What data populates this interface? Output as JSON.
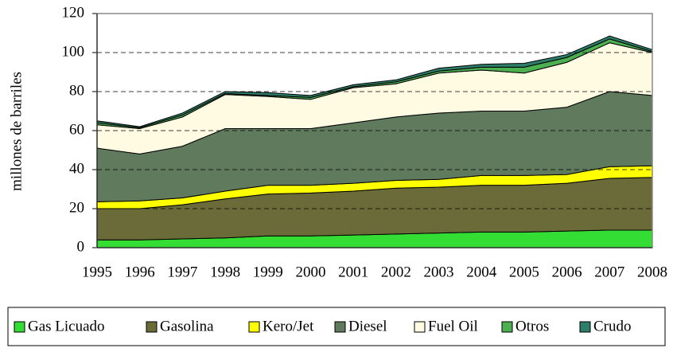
{
  "chart_data": {
    "type": "stacked-area",
    "y_label": "millones de barriles",
    "categories": [
      "1995",
      "1996",
      "1997",
      "1998",
      "1999",
      "2000",
      "2001",
      "2002",
      "2003",
      "2004",
      "2005",
      "2006",
      "2007",
      "2008"
    ],
    "ylim": [
      0,
      120
    ],
    "yticks": [
      0,
      20,
      40,
      60,
      80,
      100,
      120
    ],
    "grid": true,
    "series": [
      {
        "name": "Gas Licuado",
        "color": "#33dd33",
        "values": [
          4,
          4,
          4.5,
          5,
          6,
          6,
          6.5,
          7,
          7.5,
          8,
          8,
          8.5,
          9,
          9
        ]
      },
      {
        "name": "Gasolina",
        "color": "#6b6b3a",
        "values": [
          16,
          16,
          17.5,
          20,
          21.5,
          22,
          22.5,
          23.5,
          23.5,
          24,
          24,
          24.5,
          26.5,
          27
        ]
      },
      {
        "name": "Kero/Jet",
        "color": "#ffff00",
        "values": [
          3.5,
          4,
          3.5,
          4,
          4.5,
          4,
          4,
          4,
          4,
          5,
          5,
          4.5,
          6,
          6
        ]
      },
      {
        "name": "Diesel",
        "color": "#5f7a5c",
        "values": [
          27.5,
          24,
          26.5,
          32,
          29,
          29,
          31,
          32.5,
          34,
          33,
          33,
          34.5,
          38.5,
          36
        ]
      },
      {
        "name": "Fuel Oil",
        "color": "#fffbe3",
        "values": [
          12,
          13,
          15,
          17.5,
          16.5,
          15,
          18,
          17,
          20.5,
          21,
          19.5,
          23,
          25,
          22
        ]
      },
      {
        "name": "Otros",
        "color": "#4caf50",
        "values": [
          1,
          0.5,
          1,
          0.5,
          0.5,
          1,
          0.5,
          1,
          1,
          1.5,
          3,
          2.5,
          2,
          0.5
        ]
      },
      {
        "name": "Crudo",
        "color": "#2e7d6a",
        "values": [
          1,
          0.5,
          1,
          1,
          1.5,
          1,
          1,
          1,
          1.5,
          1.5,
          2,
          1.5,
          1.5,
          1
        ]
      }
    ]
  }
}
